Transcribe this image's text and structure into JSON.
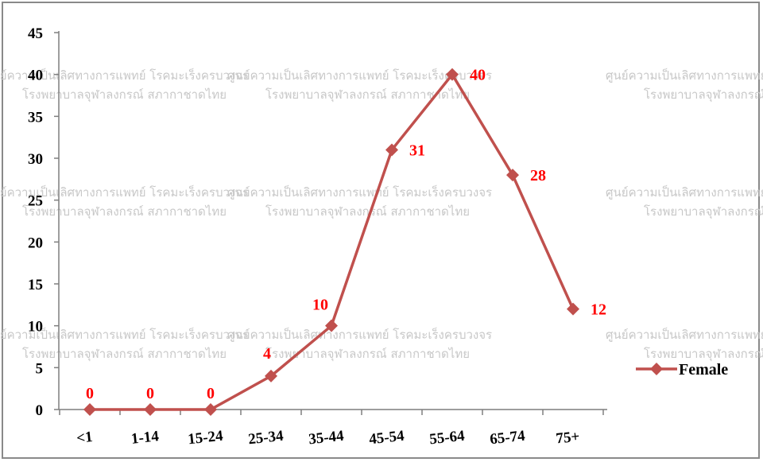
{
  "chart_data": {
    "type": "line",
    "categories": [
      "<1",
      "1-14",
      "15-24",
      "25-34",
      "35-44",
      "45-54",
      "55-64",
      "65-74",
      "75+"
    ],
    "series": [
      {
        "name": "Female",
        "values": [
          0,
          0,
          0,
          4,
          10,
          31,
          40,
          28,
          12
        ],
        "color": "#c0504d",
        "label_color": "#ff0000"
      }
    ],
    "yticks": [
      "0",
      "5",
      "10",
      "15",
      "20",
      "25",
      "30",
      "35",
      "40",
      "45"
    ],
    "ylim": [
      0,
      45
    ],
    "grid": false,
    "legend_position": "right",
    "watermark_lines": [
      "ศูนย์ความเป็นเลิศทางการแพทย์ โรคมะเร็งครบวงจร",
      "โรงพยาบาลจุฬาลงกรณ์ สภากาชาดไทย"
    ]
  }
}
